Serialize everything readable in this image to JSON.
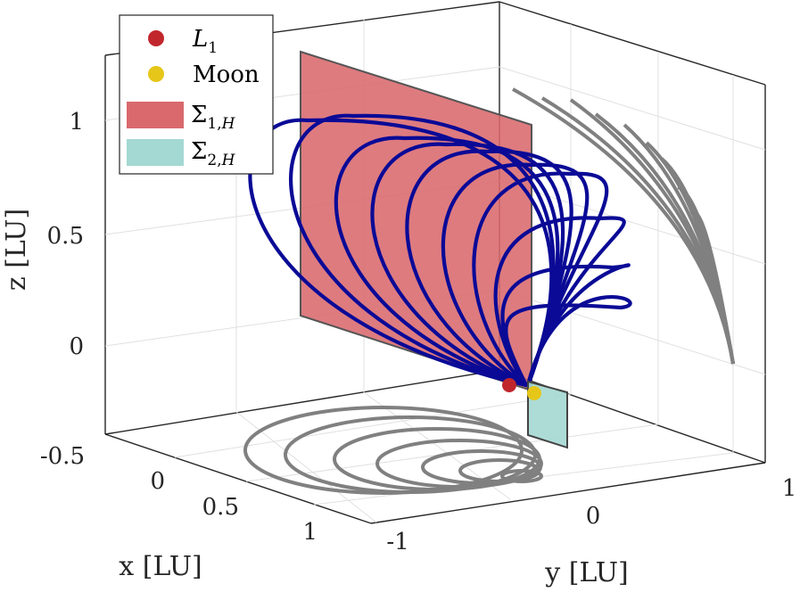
{
  "chart_data": {
    "type": "line3d",
    "title": "",
    "xlabel": "x [LU]",
    "ylabel": "y [LU]",
    "zlabel": "z [LU]",
    "x_ticks": [
      "-0.5",
      "0",
      "0.5",
      "1"
    ],
    "y_ticks": [
      "-1",
      "0",
      "1"
    ],
    "z_ticks": [
      "0",
      "0.5",
      "1"
    ],
    "grid": true,
    "box": true,
    "legend": {
      "placement": "top-left",
      "entries": [
        {
          "label_main": "L",
          "label_sub": "1",
          "marker": "circle",
          "color": "#c0272d"
        },
        {
          "label_main": "Moon",
          "label_sub": "",
          "marker": "circle",
          "color": "#e6c619"
        },
        {
          "label_main": "Σ",
          "label_sub": "1,",
          "label_sub_italic": "H",
          "marker": "patch",
          "color": "#d9696d"
        },
        {
          "label_main": "Σ",
          "label_sub": "2,",
          "label_sub_italic": "H",
          "marker": "patch",
          "color": "#a4d8d2"
        }
      ]
    },
    "colors": {
      "trajectory": "#0a0a96",
      "trajectory_inside": "#6a1a5a",
      "projection": "#808080",
      "sigma1_fill": "#d9696d",
      "sigma2_fill": "#a4d8d2",
      "l1": "#c0272d",
      "moon": "#e6c619"
    },
    "series_count": 10
  }
}
